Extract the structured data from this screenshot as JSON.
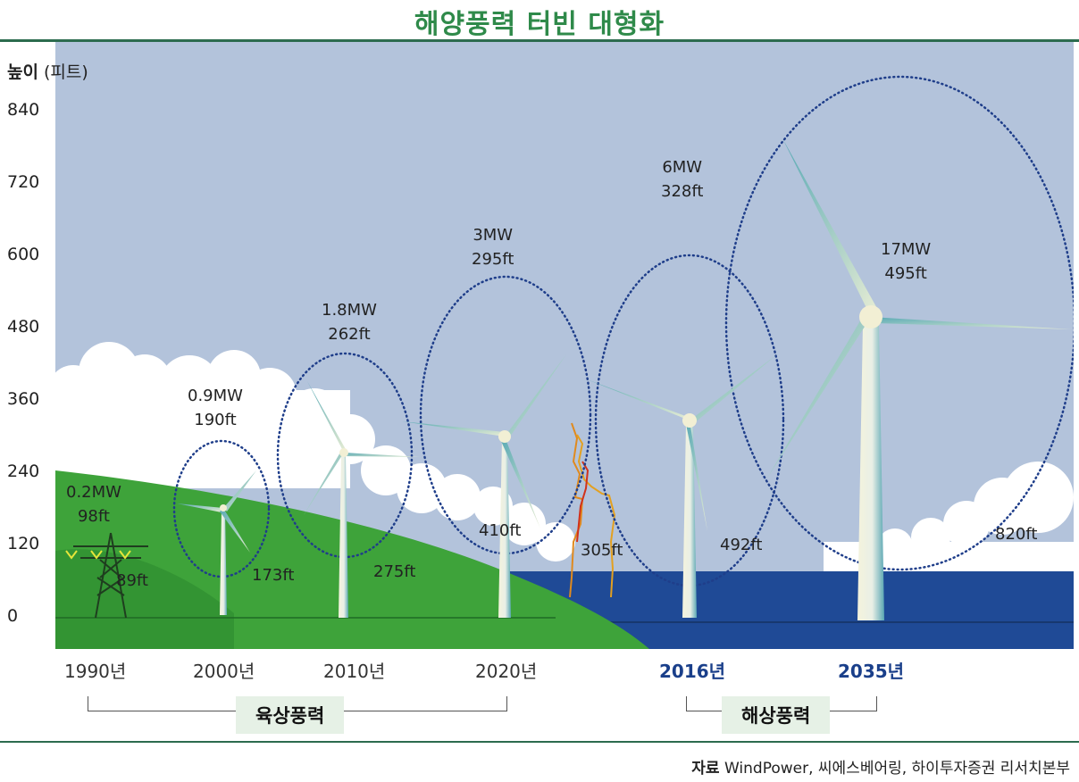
{
  "title": "해양풍력 터빈 대형화",
  "y_axis": {
    "label_bold": "높이",
    "label_unit": "(피트)",
    "ticks": [
      "840",
      "720",
      "600",
      "480",
      "360",
      "240",
      "120",
      "0"
    ]
  },
  "turbines": [
    {
      "era": "1990년",
      "power": "0.2MW",
      "rotor_diameter": "98ft",
      "height": "89ft",
      "type": "onshore"
    },
    {
      "era": "2000년",
      "power": "0.9MW",
      "rotor_diameter": "190ft",
      "height": "173ft",
      "type": "onshore"
    },
    {
      "era": "2010년",
      "power": "1.8MW",
      "rotor_diameter": "262ft",
      "height": "275ft",
      "type": "onshore"
    },
    {
      "era": "2020년",
      "power": "3MW",
      "rotor_diameter": "295ft",
      "height": "410ft",
      "type": "onshore"
    },
    {
      "era": "2016년",
      "power": "6MW",
      "rotor_diameter": "328ft",
      "height": "492ft",
      "type": "offshore"
    },
    {
      "era": "2035년",
      "power": "17MW",
      "rotor_diameter": "495ft",
      "height": "820ft",
      "type": "offshore"
    }
  ],
  "statue_height": "305ft",
  "groups": {
    "onshore": "육상풍력",
    "offshore": "해상풍력"
  },
  "source": {
    "label": "자료",
    "text": "WindPower, 씨에스베어링, 하이투자증권 리서치본부"
  },
  "colors": {
    "sky": "#b3c3db",
    "grass": "#3ea33a",
    "grass_dark": "#2d8a2e",
    "sea": "#1f4a96",
    "title": "#2f8a4a",
    "offshore_year": "#1a3f8a"
  }
}
